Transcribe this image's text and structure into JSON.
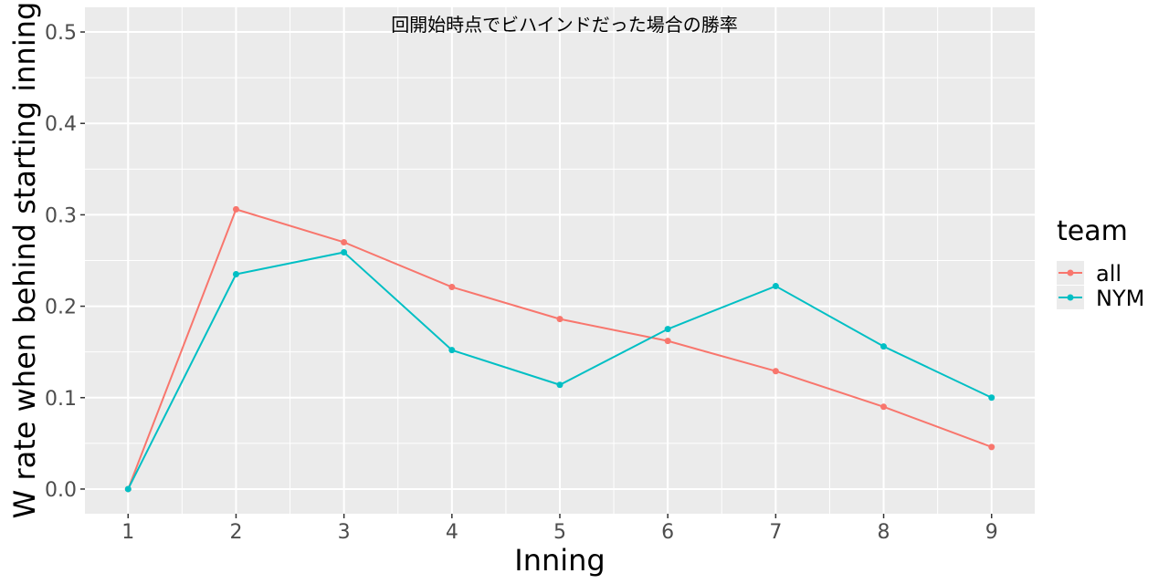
{
  "chart_data": {
    "type": "line",
    "title": "回開始時点でビハインドだった場合の勝率",
    "xlabel": "Inning",
    "ylabel": "W rate when behind starting inning",
    "x": [
      1,
      2,
      3,
      4,
      5,
      6,
      7,
      8,
      9
    ],
    "xlim": [
      0.6,
      9.4
    ],
    "ylim": [
      -0.027,
      0.527
    ],
    "y_ticks": [
      "0.0",
      "0.1",
      "0.2",
      "0.3",
      "0.4",
      "0.5"
    ],
    "x_ticks": [
      "1",
      "2",
      "3",
      "4",
      "5",
      "6",
      "7",
      "8",
      "9"
    ],
    "grid": true,
    "legend": {
      "title": "team",
      "position": "right"
    },
    "series": [
      {
        "name": "all",
        "color": "#F8766D",
        "values": [
          0.0,
          0.306,
          0.27,
          0.221,
          0.186,
          0.162,
          0.129,
          0.09,
          0.046
        ]
      },
      {
        "name": "NYM",
        "color": "#00BFC4",
        "values": [
          0.0,
          0.235,
          0.259,
          0.152,
          0.114,
          0.175,
          0.222,
          0.156,
          0.1
        ]
      }
    ]
  }
}
